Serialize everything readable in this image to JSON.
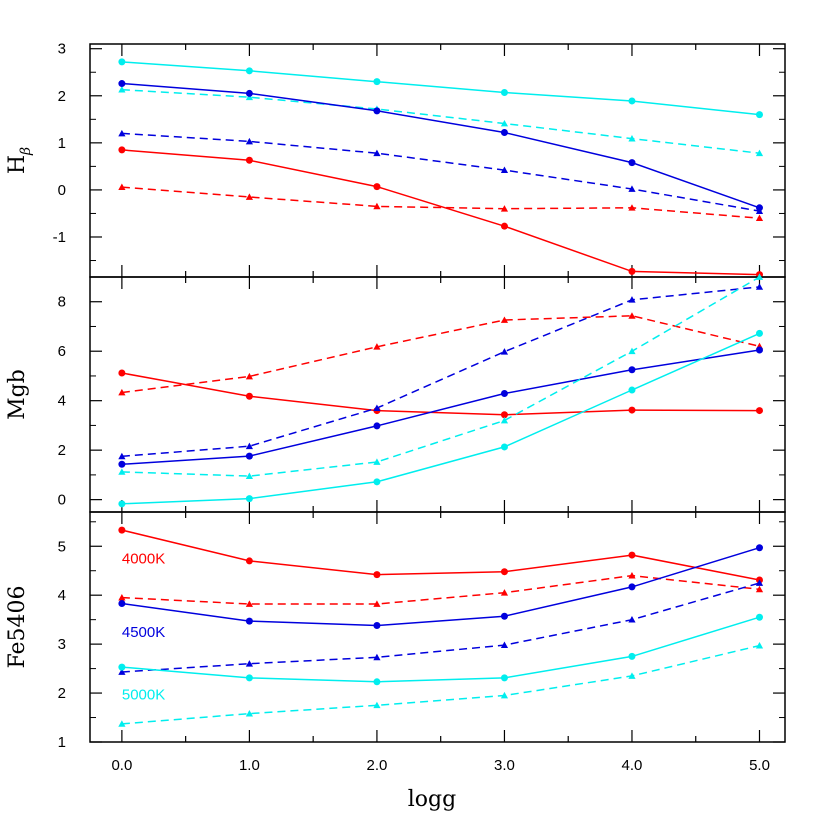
{
  "chart_data": {
    "type": "line",
    "xlabel": "logg",
    "x": [
      0.0,
      1.0,
      2.0,
      3.0,
      4.0,
      5.0
    ],
    "x_tick_labels": [
      "0.0",
      "1.0",
      "2.0",
      "3.0",
      "4.0",
      "5.0"
    ],
    "xlim": [
      -0.25,
      5.2
    ],
    "colors": {
      "4000K": "#ff0000",
      "4500K": "#0000dd",
      "5000K": "#00eeee"
    },
    "panels": [
      {
        "ylabel": "H",
        "ylabel_sub": "β",
        "ylim": [
          -1.85,
          3.1
        ],
        "y_ticks": [
          -1,
          0,
          1,
          2,
          3
        ],
        "y_tick_labels": [
          "-1",
          "0",
          "1",
          "2",
          "3"
        ],
        "series": [
          {
            "temp": "5000K",
            "style": "solid",
            "marker": "circle",
            "values": [
              2.72,
              2.53,
              2.3,
              2.07,
              1.89,
              1.6
            ]
          },
          {
            "temp": "5000K",
            "style": "dashed",
            "marker": "triangle",
            "values": [
              2.13,
              1.97,
              1.72,
              1.41,
              1.09,
              0.78
            ]
          },
          {
            "temp": "4500K",
            "style": "solid",
            "marker": "circle",
            "values": [
              2.26,
              2.05,
              1.68,
              1.22,
              0.58,
              -0.38
            ]
          },
          {
            "temp": "4500K",
            "style": "dashed",
            "marker": "triangle",
            "values": [
              1.2,
              1.03,
              0.78,
              0.42,
              0.02,
              -0.45
            ]
          },
          {
            "temp": "4000K",
            "style": "solid",
            "marker": "circle",
            "values": [
              0.85,
              0.63,
              0.07,
              -0.77,
              -1.73,
              -1.8
            ]
          },
          {
            "temp": "4000K",
            "style": "dashed",
            "marker": "triangle",
            "values": [
              0.06,
              -0.15,
              -0.35,
              -0.4,
              -0.38,
              -0.6
            ]
          }
        ]
      },
      {
        "ylabel": "Mgb",
        "ylim": [
          -0.5,
          9.0
        ],
        "y_ticks": [
          0,
          2,
          4,
          6,
          8
        ],
        "y_tick_labels": [
          "0",
          "2",
          "4",
          "6",
          "8"
        ],
        "series": [
          {
            "temp": "4000K",
            "style": "solid",
            "marker": "circle",
            "values": [
              5.12,
              4.18,
              3.6,
              3.43,
              3.62,
              3.6
            ]
          },
          {
            "temp": "4000K",
            "style": "dashed",
            "marker": "triangle",
            "values": [
              4.33,
              4.98,
              6.18,
              7.26,
              7.43,
              6.2
            ]
          },
          {
            "temp": "4500K",
            "style": "solid",
            "marker": "circle",
            "values": [
              1.43,
              1.76,
              2.98,
              4.29,
              5.25,
              6.05
            ]
          },
          {
            "temp": "4500K",
            "style": "dashed",
            "marker": "triangle",
            "values": [
              1.75,
              2.16,
              3.7,
              5.98,
              8.08,
              8.6
            ]
          },
          {
            "temp": "5000K",
            "style": "solid",
            "marker": "circle",
            "values": [
              -0.17,
              0.04,
              0.72,
              2.13,
              4.43,
              6.72
            ]
          },
          {
            "temp": "5000K",
            "style": "dashed",
            "marker": "triangle",
            "values": [
              1.12,
              0.95,
              1.52,
              3.2,
              6.0,
              9.0
            ]
          }
        ]
      },
      {
        "ylabel": "Fe5406",
        "ylim": [
          1.0,
          5.7
        ],
        "y_ticks": [
          1,
          2,
          3,
          4,
          5
        ],
        "y_tick_labels": [
          "1",
          "2",
          "3",
          "4",
          "5"
        ],
        "series": [
          {
            "temp": "4000K",
            "style": "solid",
            "marker": "circle",
            "values": [
              5.33,
              4.7,
              4.42,
              4.48,
              4.82,
              4.31
            ]
          },
          {
            "temp": "4000K",
            "style": "dashed",
            "marker": "triangle",
            "values": [
              3.95,
              3.82,
              3.82,
              4.05,
              4.4,
              4.12
            ]
          },
          {
            "temp": "4500K",
            "style": "solid",
            "marker": "circle",
            "values": [
              3.83,
              3.47,
              3.38,
              3.57,
              4.17,
              4.97
            ]
          },
          {
            "temp": "4500K",
            "style": "dashed",
            "marker": "triangle",
            "values": [
              2.43,
              2.6,
              2.73,
              2.98,
              3.5,
              4.25
            ]
          },
          {
            "temp": "5000K",
            "style": "solid",
            "marker": "circle",
            "values": [
              2.53,
              2.31,
              2.23,
              2.31,
              2.75,
              3.55
            ]
          },
          {
            "temp": "5000K",
            "style": "dashed",
            "marker": "triangle",
            "values": [
              1.37,
              1.58,
              1.75,
              1.95,
              2.35,
              2.97
            ]
          }
        ],
        "annotations": [
          {
            "text": "4000K",
            "temp": "4000K",
            "x": 0.0,
            "y": 4.65
          },
          {
            "text": "4500K",
            "temp": "4500K",
            "x": 0.0,
            "y": 3.15
          },
          {
            "text": "5000K",
            "temp": "5000K",
            "x": 0.0,
            "y": 1.87
          }
        ]
      }
    ]
  }
}
